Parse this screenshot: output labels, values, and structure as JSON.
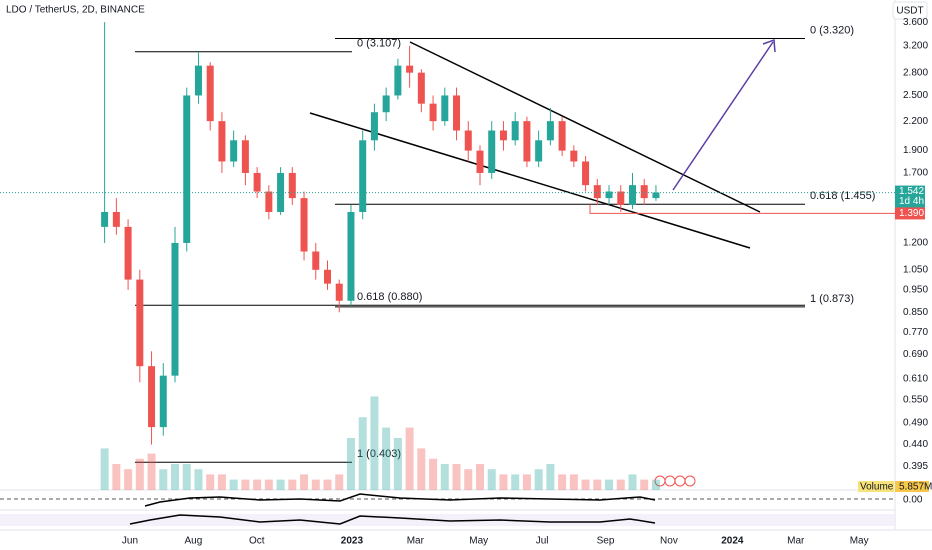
{
  "chart_data": {
    "type": "candlestick",
    "title": "LDO / TetherUS, 2D, BINANCE",
    "currency": "USDT",
    "log_scale": true,
    "grid": false,
    "up_color": "#26a69a",
    "down_color": "#ef5350",
    "xlim": [
      0.9,
      29.13
    ],
    "xticks": [
      {
        "value": 5,
        "label": "Jun"
      },
      {
        "value": 7,
        "label": "Aug"
      },
      {
        "value": 9,
        "label": "Oct"
      },
      {
        "value": 12,
        "label": "2023"
      },
      {
        "value": 14,
        "label": "Mar"
      },
      {
        "value": 16,
        "label": "May"
      },
      {
        "value": 18,
        "label": "Jul"
      },
      {
        "value": 20,
        "label": "Sep"
      },
      {
        "value": 22,
        "label": "Nov"
      },
      {
        "value": 24,
        "label": "2024"
      },
      {
        "value": 26,
        "label": "Mar"
      },
      {
        "value": 28,
        "label": "May"
      }
    ],
    "ylim": [
      0.351,
      4.02
    ],
    "yticks": [
      {
        "value": 3.6,
        "label": "3.600"
      },
      {
        "value": 3.2,
        "label": "3.200"
      },
      {
        "value": 2.8,
        "label": "2.800"
      },
      {
        "value": 2.5,
        "label": "2.500"
      },
      {
        "value": 2.2,
        "label": "2.200"
      },
      {
        "value": 1.9,
        "label": "1.900"
      },
      {
        "value": 1.7,
        "label": "1.700"
      },
      {
        "value": 1.2,
        "label": "1.200"
      },
      {
        "value": 1.05,
        "label": "1.050"
      },
      {
        "value": 0.95,
        "label": "0.950"
      },
      {
        "value": 0.85,
        "label": "0.850"
      },
      {
        "value": 0.77,
        "label": "0.770"
      },
      {
        "value": 0.69,
        "label": "0.690"
      },
      {
        "value": 0.61,
        "label": "0.610"
      },
      {
        "value": 0.55,
        "label": "0.550"
      },
      {
        "value": 0.49,
        "label": "0.490"
      },
      {
        "value": 0.44,
        "label": "0.440"
      },
      {
        "value": 0.395,
        "label": "0.395"
      }
    ],
    "candles": {
      "x": [
        4.2,
        4.57,
        4.94,
        5.31,
        5.68,
        6.05,
        6.42,
        6.79,
        7.16,
        7.53,
        7.9,
        8.27,
        8.64,
        9.01,
        9.38,
        9.75,
        10.12,
        10.49,
        10.86,
        11.23,
        11.6,
        11.97,
        12.34,
        12.71,
        13.08,
        13.45,
        13.82,
        14.19,
        14.56,
        14.93,
        15.3,
        15.67,
        16.04,
        16.41,
        16.78,
        17.15,
        17.52,
        17.89,
        18.26,
        18.63,
        19.0,
        19.37,
        19.74,
        20.11,
        20.48,
        20.85,
        21.22,
        21.59
      ],
      "open": [
        1.3,
        1.4,
        1.3,
        1.0,
        0.65,
        0.48,
        0.62,
        1.2,
        2.5,
        2.9,
        2.2,
        1.8,
        2.0,
        1.7,
        1.55,
        1.4,
        1.7,
        1.5,
        1.15,
        1.05,
        0.98,
        0.9,
        1.4,
        2.0,
        2.3,
        2.5,
        2.9,
        2.8,
        2.4,
        2.2,
        2.5,
        2.1,
        1.9,
        1.7,
        2.1,
        2.0,
        2.2,
        1.8,
        2.0,
        2.2,
        1.9,
        1.8,
        1.6,
        1.5,
        1.55,
        1.45,
        1.6,
        1.5
      ],
      "high": [
        3.6,
        1.5,
        1.35,
        1.05,
        0.7,
        0.66,
        1.3,
        2.6,
        3.1,
        2.95,
        2.3,
        2.1,
        2.05,
        1.75,
        1.6,
        1.75,
        1.75,
        1.55,
        1.2,
        1.1,
        1.0,
        1.45,
        2.1,
        2.4,
        2.6,
        3.0,
        3.2,
        2.85,
        2.5,
        2.6,
        2.6,
        2.2,
        1.95,
        2.2,
        2.2,
        2.3,
        2.25,
        2.1,
        2.35,
        2.25,
        1.95,
        1.85,
        1.65,
        1.6,
        1.6,
        1.7,
        1.65,
        1.6
      ],
      "low": [
        1.2,
        1.25,
        0.95,
        0.6,
        0.44,
        0.46,
        0.6,
        1.15,
        2.4,
        2.1,
        1.7,
        1.75,
        1.6,
        1.5,
        1.35,
        1.38,
        1.45,
        1.1,
        1.0,
        0.95,
        0.85,
        0.88,
        1.35,
        1.9,
        2.2,
        2.45,
        2.6,
        2.3,
        2.1,
        2.15,
        2.0,
        1.8,
        1.6,
        1.65,
        1.9,
        1.95,
        1.75,
        1.75,
        1.95,
        1.85,
        1.75,
        1.55,
        1.45,
        1.45,
        1.4,
        1.42,
        1.45,
        1.48
      ],
      "close": [
        1.4,
        1.3,
        1.0,
        0.65,
        0.48,
        0.62,
        1.2,
        2.5,
        2.9,
        2.2,
        1.8,
        2.0,
        1.7,
        1.55,
        1.4,
        1.7,
        1.5,
        1.15,
        1.05,
        0.98,
        0.9,
        1.4,
        2.0,
        2.3,
        2.5,
        2.9,
        2.8,
        2.4,
        2.2,
        2.5,
        2.1,
        1.9,
        1.7,
        2.1,
        2.0,
        2.2,
        1.8,
        2.0,
        2.2,
        1.9,
        1.8,
        1.6,
        1.5,
        1.55,
        1.45,
        1.6,
        1.5,
        1.542
      ],
      "volume": [
        8,
        5,
        4,
        6,
        7,
        4,
        5,
        5,
        4,
        3,
        3,
        2,
        2,
        2,
        2,
        2,
        2,
        3,
        2,
        2,
        3,
        10,
        14,
        18,
        12,
        10,
        12,
        8,
        6,
        5,
        5,
        4,
        5,
        4,
        3,
        3,
        3,
        4,
        5,
        3,
        3,
        2,
        2,
        2,
        2,
        3,
        2,
        2
      ]
    },
    "volume_ylim": [
      0,
      25
    ],
    "volume_ma_name": "Volume MA",
    "volume_ma": {
      "value": 5.857,
      "label": "5.857M"
    },
    "countdown": "1d 4h",
    "alert_level": {
      "value": 1.39,
      "label": "1.390"
    },
    "oscillator_zero": {
      "value": 0,
      "label": "0.00"
    },
    "fib_levels": [
      {
        "label": "0 (3.107)",
        "value": 3.107
      },
      {
        "label": "0.618 (0.880)",
        "value": 0.88
      },
      {
        "label": "1 (0.403)",
        "value": 0.403
      },
      {
        "label": "0 (3.320)",
        "value": 3.32
      },
      {
        "label": "0.618 (1.455)",
        "value": 1.455
      },
      {
        "label": "1 (0.873)",
        "value": 0.873
      }
    ]
  }
}
